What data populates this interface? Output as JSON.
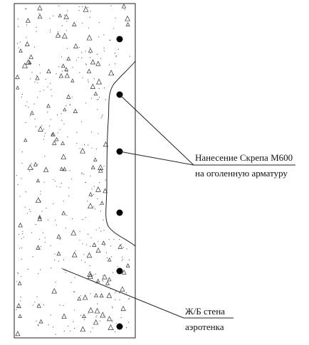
{
  "callouts": [
    {
      "line1": "Нанесение Скрепа М600",
      "line2": "на оголенную арматуру"
    },
    {
      "line1": "Ж/Б стена",
      "line2": "аэротенка"
    }
  ]
}
